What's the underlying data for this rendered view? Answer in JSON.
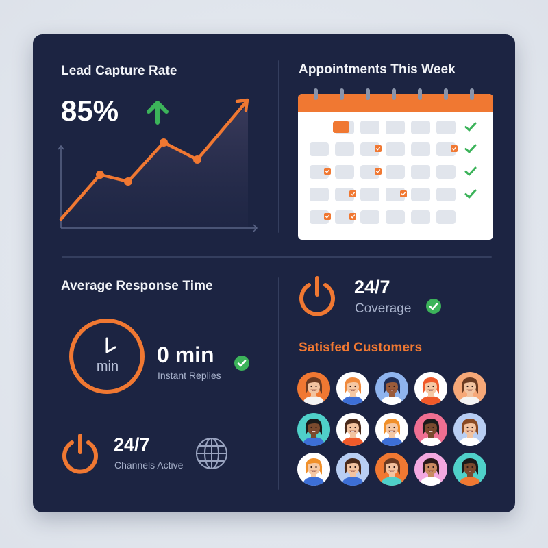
{
  "colors": {
    "background": "#1c2442",
    "accent": "#f07832",
    "success": "#3cb35a",
    "text_primary": "#ffffff",
    "text_secondary": "#a9b3cc"
  },
  "lead_capture": {
    "title": "Lead Capture Rate",
    "value": "85%",
    "trend_icon": "arrow-up-icon"
  },
  "appointments": {
    "title": "Appointments This Week",
    "calendar": {
      "columns": 6,
      "rows": 5,
      "highlighted_cell": {
        "row": 0,
        "col": 1
      },
      "checked_cells": [
        {
          "row": 1,
          "col": 2
        },
        {
          "row": 1,
          "col": 5
        },
        {
          "row": 2,
          "col": 0
        },
        {
          "row": 2,
          "col": 2
        },
        {
          "row": 3,
          "col": 1
        },
        {
          "row": 3,
          "col": 3
        },
        {
          "row": 4,
          "col": 0
        },
        {
          "row": 4,
          "col": 1
        }
      ],
      "rows_completed": [
        0,
        1,
        2,
        3
      ]
    }
  },
  "response_time": {
    "title": "Average Response Time",
    "clock_label": "min",
    "value": "0 min",
    "caption": "Instant Replies",
    "status_icon": "check-circle-icon"
  },
  "channels": {
    "value": "24/7",
    "caption": "Channels Active",
    "icons": [
      "power-icon",
      "globe-icon"
    ]
  },
  "coverage": {
    "value": "24/7",
    "caption": "Coverage",
    "icons": [
      "power-icon",
      "check-circle-icon"
    ]
  },
  "customers": {
    "title": "Satisfed Customers",
    "avatars": [
      {
        "bg": "#f07832",
        "skin": "#f2c3a0",
        "hair": "#6b3b22",
        "shirt": "#f4f4f4"
      },
      {
        "bg": "#ffffff",
        "skin": "#f5c8a4",
        "hair": "#f08a3c",
        "shirt": "#3d6fd6"
      },
      {
        "bg": "#8fb4ee",
        "skin": "#9a5b3a",
        "hair": "#1f2d55",
        "shirt": "#ffffff"
      },
      {
        "bg": "#ffffff",
        "skin": "#f5c8a4",
        "hair": "#f05a2a",
        "shirt": "#f05a2a"
      },
      {
        "bg": "#f6a878",
        "skin": "#f2c3a0",
        "hair": "#6b3b22",
        "shirt": "#f4f4f4"
      },
      {
        "bg": "#4fd0c9",
        "skin": "#7a4a2e",
        "hair": "#1a1a1a",
        "shirt": "#3d6fd6"
      },
      {
        "bg": "#ffffff",
        "skin": "#f2c3a0",
        "hair": "#4a2a1a",
        "shirt": "#f05a2a"
      },
      {
        "bg": "#ffffff",
        "skin": "#f5c8a4",
        "hair": "#f0902a",
        "shirt": "#3d6fd6"
      },
      {
        "bg": "#ef6f92",
        "skin": "#7a4a2e",
        "hair": "#1a1a1a",
        "shirt": "#ffffff"
      },
      {
        "bg": "#b8cef3",
        "skin": "#f2c3a0",
        "hair": "#8a4a22",
        "shirt": "#ffffff"
      },
      {
        "bg": "#ffffff",
        "skin": "#f5c8a4",
        "hair": "#f0902a",
        "shirt": "#3d6fd6"
      },
      {
        "bg": "#b8cef3",
        "skin": "#f2c3a0",
        "hair": "#4a2a1a",
        "shirt": "#3d6fd6"
      },
      {
        "bg": "#f07832",
        "skin": "#f2c3a0",
        "hair": "#6b3b22",
        "shirt": "#4fd0c9"
      },
      {
        "bg": "#f3a8e0",
        "skin": "#c98a60",
        "hair": "#2a1a1a",
        "shirt": "#ffffff"
      },
      {
        "bg": "#4fd0c9",
        "skin": "#7a4a2e",
        "hair": "#1a1a1a",
        "shirt": "#f07832"
      }
    ]
  },
  "chart_data": {
    "type": "line",
    "title": "Lead Capture Rate",
    "headline_value": "85%",
    "x": [
      0,
      1,
      2,
      3,
      4,
      5
    ],
    "values": [
      10,
      55,
      48,
      87,
      70,
      130
    ],
    "xlabel": "",
    "ylabel": "",
    "grid": false,
    "area_fill": true,
    "trend": "up"
  }
}
